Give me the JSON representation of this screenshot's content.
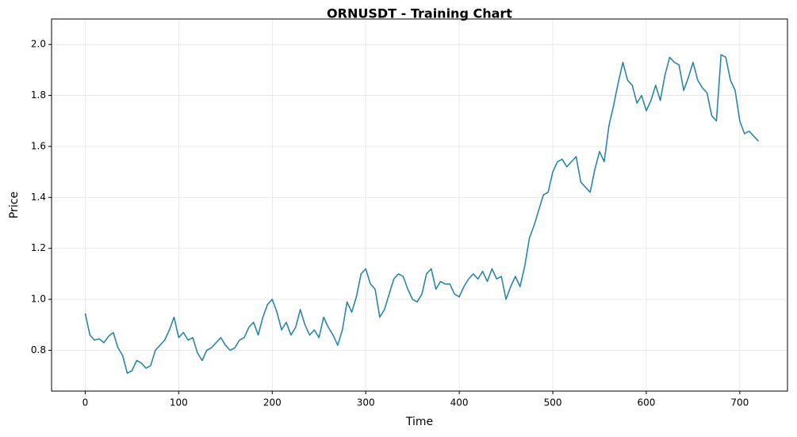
{
  "chart_data": {
    "type": "line",
    "title": "ORNUSDT - Training Chart",
    "xlabel": "Time",
    "ylabel": "Price",
    "x": [
      0,
      5,
      10,
      15,
      20,
      25,
      30,
      35,
      40,
      45,
      50,
      55,
      60,
      65,
      70,
      75,
      80,
      85,
      90,
      95,
      100,
      105,
      110,
      115,
      120,
      125,
      130,
      135,
      140,
      145,
      150,
      155,
      160,
      165,
      170,
      175,
      180,
      185,
      190,
      195,
      200,
      205,
      210,
      215,
      220,
      225,
      230,
      235,
      240,
      245,
      250,
      255,
      260,
      265,
      270,
      275,
      280,
      285,
      290,
      295,
      300,
      305,
      310,
      315,
      320,
      325,
      330,
      335,
      340,
      345,
      350,
      355,
      360,
      365,
      370,
      375,
      380,
      385,
      390,
      395,
      400,
      405,
      410,
      415,
      420,
      425,
      430,
      435,
      440,
      445,
      450,
      455,
      460,
      465,
      470,
      475,
      480,
      485,
      490,
      495,
      500,
      505,
      510,
      515,
      520,
      525,
      530,
      535,
      540,
      545,
      550,
      555,
      560,
      565,
      570,
      575,
      580,
      585,
      590,
      595,
      600,
      605,
      610,
      615,
      620,
      625,
      630,
      635,
      640,
      645,
      650,
      655,
      660,
      665,
      670,
      675,
      680,
      685,
      690,
      695,
      700,
      705,
      710,
      715,
      720
    ],
    "values": [
      0.945,
      0.86,
      0.84,
      0.845,
      0.83,
      0.855,
      0.87,
      0.81,
      0.78,
      0.71,
      0.72,
      0.76,
      0.75,
      0.73,
      0.74,
      0.8,
      0.82,
      0.84,
      0.88,
      0.93,
      0.85,
      0.87,
      0.84,
      0.85,
      0.79,
      0.76,
      0.8,
      0.81,
      0.83,
      0.85,
      0.82,
      0.8,
      0.81,
      0.84,
      0.85,
      0.89,
      0.91,
      0.86,
      0.93,
      0.98,
      1.0,
      0.95,
      0.88,
      0.91,
      0.86,
      0.89,
      0.96,
      0.9,
      0.86,
      0.88,
      0.85,
      0.93,
      0.89,
      0.86,
      0.82,
      0.88,
      0.99,
      0.95,
      1.01,
      1.1,
      1.12,
      1.06,
      1.04,
      0.93,
      0.96,
      1.02,
      1.08,
      1.1,
      1.09,
      1.04,
      1.0,
      0.99,
      1.02,
      1.1,
      1.12,
      1.04,
      1.07,
      1.06,
      1.06,
      1.02,
      1.01,
      1.05,
      1.08,
      1.1,
      1.08,
      1.11,
      1.07,
      1.12,
      1.08,
      1.09,
      1.0,
      1.05,
      1.09,
      1.05,
      1.13,
      1.24,
      1.29,
      1.35,
      1.41,
      1.42,
      1.5,
      1.54,
      1.55,
      1.52,
      1.54,
      1.56,
      1.46,
      1.44,
      1.42,
      1.51,
      1.58,
      1.54,
      1.68,
      1.76,
      1.85,
      1.93,
      1.86,
      1.84,
      1.77,
      1.8,
      1.74,
      1.78,
      1.84,
      1.78,
      1.88,
      1.95,
      1.93,
      1.92,
      1.82,
      1.87,
      1.93,
      1.86,
      1.83,
      1.81,
      1.72,
      1.7,
      1.96,
      1.95,
      1.86,
      1.82,
      1.7,
      1.65,
      1.66,
      1.64,
      1.62
    ],
    "color": "#2a86a8",
    "xlim": [
      -36,
      751
    ],
    "ylim": [
      0.64,
      2.1
    ],
    "xticks": [
      0,
      100,
      200,
      300,
      400,
      500,
      600,
      700
    ],
    "yticks": [
      0.8,
      {
        "value": 1.0,
        "label": "1.0"
      },
      1.2,
      1.4,
      1.6,
      1.8,
      {
        "value": 2.0,
        "label": "2.0"
      }
    ],
    "grid": true
  }
}
